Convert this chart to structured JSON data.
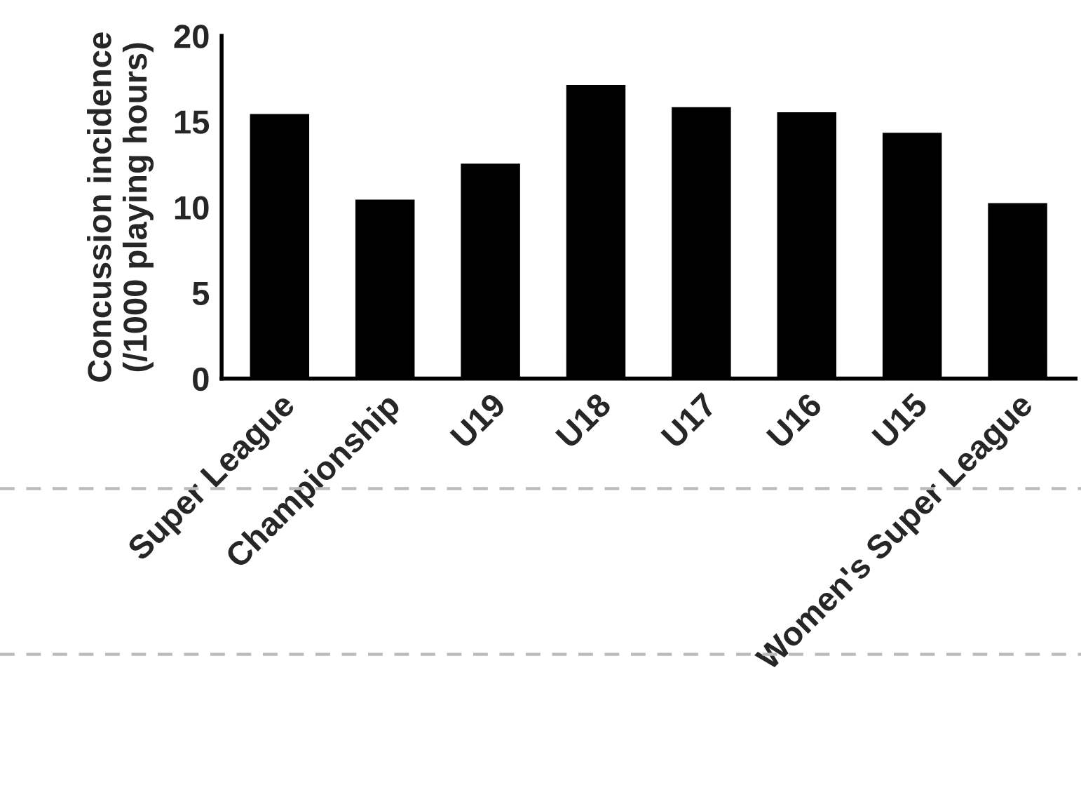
{
  "chart_data": {
    "type": "bar",
    "ylabel": "Concussion incidence\n(/1000 playing hours)",
    "categories": [
      "Super League",
      "Championship",
      "U19",
      "U18",
      "U17",
      "U16",
      "U15",
      "Women's Super League"
    ],
    "values": [
      15.5,
      10.5,
      12.6,
      17.2,
      15.9,
      15.6,
      14.4,
      10.3
    ],
    "color": "#000000",
    "ylim": [
      0,
      20
    ],
    "yticks": [
      0,
      5,
      10,
      15,
      20
    ],
    "grid": false,
    "legend": false
  }
}
